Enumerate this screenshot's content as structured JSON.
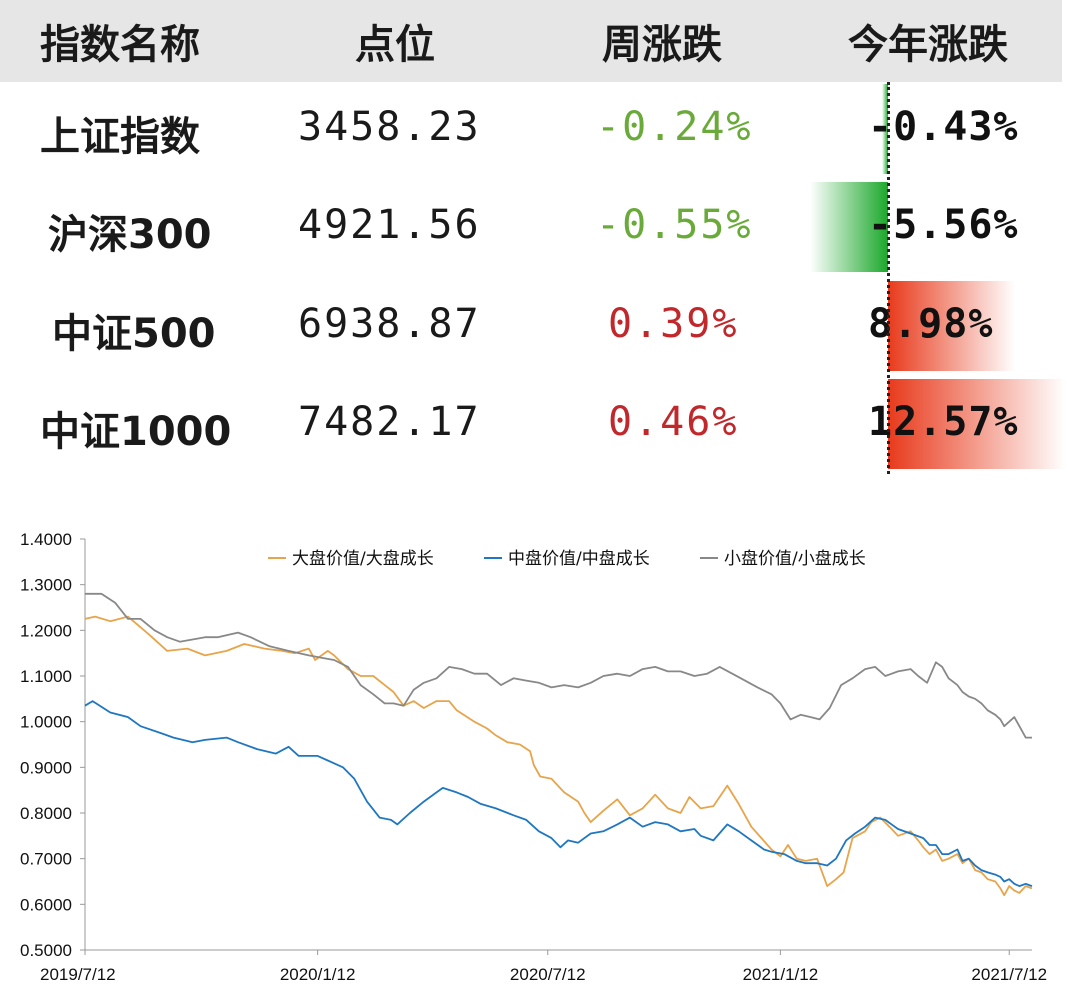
{
  "table": {
    "headers": {
      "name": "指数名称",
      "level": "点位",
      "weekly": "周涨跌",
      "ytd": "今年涨跌"
    },
    "rows": [
      {
        "name": "上证指数",
        "level": "3458.23",
        "weekly": "-0.24%",
        "ytd": "-0.43%",
        "ytd_value": -0.43,
        "direction": "down"
      },
      {
        "name": "沪深300",
        "level": "4921.56",
        "weekly": "-0.55%",
        "ytd": "-5.56%",
        "ytd_value": -5.56,
        "direction": "down"
      },
      {
        "name": "中证500",
        "level": "6938.87",
        "weekly": "0.39%",
        "ytd": "8.98%",
        "ytd_value": 8.98,
        "direction": "up"
      },
      {
        "name": "中证1000",
        "level": "7482.17",
        "weekly": "0.46%",
        "ytd": "12.57%",
        "ytd_value": 12.57,
        "direction": "up"
      }
    ],
    "colors": {
      "up": "#c0282b",
      "down": "#6aaa3a",
      "bar_up": "#e83a1c",
      "bar_down": "#1aa82a",
      "header_bg": "#e6e6e6"
    }
  },
  "chart_data": {
    "type": "line",
    "title": "",
    "xlabel": "",
    "ylabel": "",
    "ylim": [
      0.5,
      1.4
    ],
    "yticks": [
      "0.5000",
      "0.6000",
      "0.7000",
      "0.8000",
      "0.9000",
      "1.0000",
      "1.1000",
      "1.2000",
      "1.3000",
      "1.4000"
    ],
    "xticks": [
      "2019/7/12",
      "2020/1/12",
      "2020/7/12",
      "2021/1/12",
      "2021/7/12"
    ],
    "x_start": "2019/7/12",
    "x_end": "2021/7/30",
    "grid": false,
    "legend_position": "top",
    "series": [
      {
        "name": "大盘价值/大盘成长",
        "color": "#e8a44a",
        "points": [
          [
            "2019/7/12",
            1.225
          ],
          [
            "2019/7/20",
            1.23
          ],
          [
            "2019/8/1",
            1.22
          ],
          [
            "2019/8/15",
            1.23
          ],
          [
            "2019/9/1",
            1.19
          ],
          [
            "2019/9/15",
            1.155
          ],
          [
            "2019/10/1",
            1.16
          ],
          [
            "2019/10/15",
            1.145
          ],
          [
            "2019/11/1",
            1.155
          ],
          [
            "2019/11/15",
            1.17
          ],
          [
            "2019/12/1",
            1.16
          ],
          [
            "2019/12/15",
            1.155
          ],
          [
            "2019/12/25",
            1.15
          ],
          [
            "2020/1/5",
            1.16
          ],
          [
            "2020/1/10",
            1.135
          ],
          [
            "2020/1/20",
            1.155
          ],
          [
            "2020/1/25",
            1.145
          ],
          [
            "2020/2/5",
            1.115
          ],
          [
            "2020/2/15",
            1.1
          ],
          [
            "2020/2/25",
            1.1
          ],
          [
            "2020/3/5",
            1.08
          ],
          [
            "2020/3/12",
            1.065
          ],
          [
            "2020/3/20",
            1.035
          ],
          [
            "2020/3/28",
            1.045
          ],
          [
            "2020/4/5",
            1.03
          ],
          [
            "2020/4/15",
            1.045
          ],
          [
            "2020/4/25",
            1.045
          ],
          [
            "2020/5/1",
            1.025
          ],
          [
            "2020/5/15",
            1.0
          ],
          [
            "2020/5/25",
            0.985
          ],
          [
            "2020/6/1",
            0.97
          ],
          [
            "2020/6/10",
            0.955
          ],
          [
            "2020/6/20",
            0.95
          ],
          [
            "2020/6/28",
            0.935
          ],
          [
            "2020/7/1",
            0.905
          ],
          [
            "2020/7/6",
            0.88
          ],
          [
            "2020/7/15",
            0.875
          ],
          [
            "2020/7/25",
            0.845
          ],
          [
            "2020/8/5",
            0.825
          ],
          [
            "2020/8/10",
            0.8
          ],
          [
            "2020/8/15",
            0.78
          ],
          [
            "2020/8/25",
            0.805
          ],
          [
            "2020/9/5",
            0.83
          ],
          [
            "2020/9/15",
            0.795
          ],
          [
            "2020/9/25",
            0.81
          ],
          [
            "2020/10/5",
            0.84
          ],
          [
            "2020/10/15",
            0.81
          ],
          [
            "2020/10/25",
            0.8
          ],
          [
            "2020/11/1",
            0.835
          ],
          [
            "2020/11/10",
            0.81
          ],
          [
            "2020/11/20",
            0.815
          ],
          [
            "2020/12/1",
            0.86
          ],
          [
            "2020/12/10",
            0.82
          ],
          [
            "2020/12/20",
            0.77
          ],
          [
            "2020/12/28",
            0.745
          ],
          [
            "2021/1/5",
            0.72
          ],
          [
            "2021/1/12",
            0.705
          ],
          [
            "2021/1/18",
            0.73
          ],
          [
            "2021/1/25",
            0.7
          ],
          [
            "2021/2/1",
            0.695
          ],
          [
            "2021/2/10",
            0.7
          ],
          [
            "2021/2/18",
            0.64
          ],
          [
            "2021/2/25",
            0.655
          ],
          [
            "2021/3/3",
            0.67
          ],
          [
            "2021/3/10",
            0.745
          ],
          [
            "2021/3/20",
            0.76
          ],
          [
            "2021/3/25",
            0.78
          ],
          [
            "2021/4/1",
            0.79
          ],
          [
            "2021/4/10",
            0.765
          ],
          [
            "2021/4/15",
            0.75
          ],
          [
            "2021/4/25",
            0.76
          ],
          [
            "2021/5/1",
            0.74
          ],
          [
            "2021/5/5",
            0.725
          ],
          [
            "2021/5/10",
            0.71
          ],
          [
            "2021/5/15",
            0.72
          ],
          [
            "2021/5/20",
            0.695
          ],
          [
            "2021/5/25",
            0.7
          ],
          [
            "2021/6/1",
            0.71
          ],
          [
            "2021/6/5",
            0.69
          ],
          [
            "2021/6/10",
            0.7
          ],
          [
            "2021/6/15",
            0.675
          ],
          [
            "2021/6/20",
            0.67
          ],
          [
            "2021/6/25",
            0.655
          ],
          [
            "2021/7/1",
            0.65
          ],
          [
            "2021/7/5",
            0.635
          ],
          [
            "2021/7/8",
            0.62
          ],
          [
            "2021/7/12",
            0.64
          ],
          [
            "2021/7/16",
            0.63
          ],
          [
            "2021/7/20",
            0.625
          ],
          [
            "2021/7/25",
            0.64
          ],
          [
            "2021/7/30",
            0.635
          ]
        ]
      },
      {
        "name": "中盘价值/中盘成长",
        "color": "#1f77c0",
        "points": [
          [
            "2019/7/12",
            1.035
          ],
          [
            "2019/7/18",
            1.045
          ],
          [
            "2019/8/1",
            1.02
          ],
          [
            "2019/8/15",
            1.01
          ],
          [
            "2019/8/25",
            0.99
          ],
          [
            "2019/9/10",
            0.975
          ],
          [
            "2019/9/20",
            0.965
          ],
          [
            "2019/10/5",
            0.955
          ],
          [
            "2019/10/15",
            0.96
          ],
          [
            "2019/11/1",
            0.965
          ],
          [
            "2019/11/10",
            0.955
          ],
          [
            "2019/11/25",
            0.94
          ],
          [
            "2019/12/10",
            0.93
          ],
          [
            "2019/12/20",
            0.945
          ],
          [
            "2019/12/28",
            0.925
          ],
          [
            "2020/1/12",
            0.925
          ],
          [
            "2020/1/20",
            0.915
          ],
          [
            "2020/2/1",
            0.9
          ],
          [
            "2020/2/10",
            0.875
          ],
          [
            "2020/2/20",
            0.825
          ],
          [
            "2020/3/1",
            0.79
          ],
          [
            "2020/3/10",
            0.785
          ],
          [
            "2020/3/15",
            0.775
          ],
          [
            "2020/3/25",
            0.8
          ],
          [
            "2020/4/5",
            0.825
          ],
          [
            "2020/4/15",
            0.845
          ],
          [
            "2020/4/20",
            0.855
          ],
          [
            "2020/5/1",
            0.845
          ],
          [
            "2020/5/10",
            0.835
          ],
          [
            "2020/5/20",
            0.82
          ],
          [
            "2020/6/1",
            0.81
          ],
          [
            "2020/6/15",
            0.795
          ],
          [
            "2020/6/25",
            0.785
          ],
          [
            "2020/7/5",
            0.76
          ],
          [
            "2020/7/15",
            0.745
          ],
          [
            "2020/7/22",
            0.725
          ],
          [
            "2020/7/28",
            0.74
          ],
          [
            "2020/8/5",
            0.735
          ],
          [
            "2020/8/15",
            0.755
          ],
          [
            "2020/8/25",
            0.76
          ],
          [
            "2020/9/5",
            0.775
          ],
          [
            "2020/9/15",
            0.79
          ],
          [
            "2020/9/25",
            0.77
          ],
          [
            "2020/10/5",
            0.78
          ],
          [
            "2020/10/15",
            0.775
          ],
          [
            "2020/10/25",
            0.76
          ],
          [
            "2020/11/5",
            0.765
          ],
          [
            "2020/11/10",
            0.75
          ],
          [
            "2020/11/20",
            0.74
          ],
          [
            "2020/12/1",
            0.775
          ],
          [
            "2020/12/10",
            0.76
          ],
          [
            "2020/12/20",
            0.74
          ],
          [
            "2020/12/30",
            0.72
          ],
          [
            "2021/1/5",
            0.715
          ],
          [
            "2021/1/15",
            0.71
          ],
          [
            "2021/1/25",
            0.695
          ],
          [
            "2021/2/1",
            0.69
          ],
          [
            "2021/2/10",
            0.69
          ],
          [
            "2021/2/18",
            0.685
          ],
          [
            "2021/2/25",
            0.7
          ],
          [
            "2021/3/5",
            0.74
          ],
          [
            "2021/3/12",
            0.755
          ],
          [
            "2021/3/20",
            0.77
          ],
          [
            "2021/3/28",
            0.79
          ],
          [
            "2021/4/5",
            0.785
          ],
          [
            "2021/4/15",
            0.765
          ],
          [
            "2021/4/25",
            0.755
          ],
          [
            "2021/5/5",
            0.745
          ],
          [
            "2021/5/10",
            0.73
          ],
          [
            "2021/5/15",
            0.73
          ],
          [
            "2021/5/20",
            0.71
          ],
          [
            "2021/5/25",
            0.71
          ],
          [
            "2021/6/1",
            0.72
          ],
          [
            "2021/6/5",
            0.695
          ],
          [
            "2021/6/10",
            0.7
          ],
          [
            "2021/6/15",
            0.685
          ],
          [
            "2021/6/20",
            0.675
          ],
          [
            "2021/6/25",
            0.67
          ],
          [
            "2021/7/1",
            0.665
          ],
          [
            "2021/7/5",
            0.66
          ],
          [
            "2021/7/8",
            0.65
          ],
          [
            "2021/7/12",
            0.655
          ],
          [
            "2021/7/16",
            0.645
          ],
          [
            "2021/7/20",
            0.64
          ],
          [
            "2021/7/25",
            0.645
          ],
          [
            "2021/7/30",
            0.64
          ]
        ]
      },
      {
        "name": "小盘价值/小盘成长",
        "color": "#888888",
        "points": [
          [
            "2019/7/12",
            1.28
          ],
          [
            "2019/7/25",
            1.28
          ],
          [
            "2019/8/5",
            1.26
          ],
          [
            "2019/8/15",
            1.225
          ],
          [
            "2019/8/25",
            1.225
          ],
          [
            "2019/9/5",
            1.2
          ],
          [
            "2019/9/15",
            1.185
          ],
          [
            "2019/9/25",
            1.175
          ],
          [
            "2019/10/5",
            1.18
          ],
          [
            "2019/10/15",
            1.185
          ],
          [
            "2019/10/25",
            1.185
          ],
          [
            "2019/11/10",
            1.195
          ],
          [
            "2019/11/20",
            1.185
          ],
          [
            "2019/12/5",
            1.165
          ],
          [
            "2019/12/20",
            1.155
          ],
          [
            "2020/1/5",
            1.145
          ],
          [
            "2020/1/15",
            1.14
          ],
          [
            "2020/1/25",
            1.135
          ],
          [
            "2020/2/5",
            1.12
          ],
          [
            "2020/2/15",
            1.08
          ],
          [
            "2020/2/25",
            1.06
          ],
          [
            "2020/3/5",
            1.04
          ],
          [
            "2020/3/12",
            1.04
          ],
          [
            "2020/3/20",
            1.035
          ],
          [
            "2020/3/28",
            1.07
          ],
          [
            "2020/4/5",
            1.085
          ],
          [
            "2020/4/15",
            1.095
          ],
          [
            "2020/4/25",
            1.12
          ],
          [
            "2020/5/5",
            1.115
          ],
          [
            "2020/5/15",
            1.105
          ],
          [
            "2020/5/25",
            1.105
          ],
          [
            "2020/6/5",
            1.08
          ],
          [
            "2020/6/15",
            1.095
          ],
          [
            "2020/6/25",
            1.09
          ],
          [
            "2020/7/5",
            1.085
          ],
          [
            "2020/7/15",
            1.075
          ],
          [
            "2020/7/25",
            1.08
          ],
          [
            "2020/8/5",
            1.075
          ],
          [
            "2020/8/15",
            1.085
          ],
          [
            "2020/8/25",
            1.1
          ],
          [
            "2020/9/5",
            1.105
          ],
          [
            "2020/9/15",
            1.1
          ],
          [
            "2020/9/25",
            1.115
          ],
          [
            "2020/10/5",
            1.12
          ],
          [
            "2020/10/15",
            1.11
          ],
          [
            "2020/10/25",
            1.11
          ],
          [
            "2020/11/5",
            1.1
          ],
          [
            "2020/11/15",
            1.105
          ],
          [
            "2020/11/25",
            1.12
          ],
          [
            "2020/12/5",
            1.105
          ],
          [
            "2020/12/15",
            1.09
          ],
          [
            "2020/12/25",
            1.075
          ],
          [
            "2021/1/5",
            1.06
          ],
          [
            "2021/1/12",
            1.04
          ],
          [
            "2021/1/20",
            1.005
          ],
          [
            "2021/1/28",
            1.015
          ],
          [
            "2021/2/5",
            1.01
          ],
          [
            "2021/2/12",
            1.005
          ],
          [
            "2021/2/20",
            1.03
          ],
          [
            "2021/3/1",
            1.08
          ],
          [
            "2021/3/10",
            1.095
          ],
          [
            "2021/3/20",
            1.115
          ],
          [
            "2021/3/28",
            1.12
          ],
          [
            "2021/4/5",
            1.1
          ],
          [
            "2021/4/15",
            1.11
          ],
          [
            "2021/4/25",
            1.115
          ],
          [
            "2021/5/1",
            1.1
          ],
          [
            "2021/5/8",
            1.085
          ],
          [
            "2021/5/15",
            1.13
          ],
          [
            "2021/5/20",
            1.12
          ],
          [
            "2021/5/25",
            1.095
          ],
          [
            "2021/6/1",
            1.08
          ],
          [
            "2021/6/5",
            1.065
          ],
          [
            "2021/6/10",
            1.055
          ],
          [
            "2021/6/15",
            1.05
          ],
          [
            "2021/6/20",
            1.04
          ],
          [
            "2021/6/25",
            1.025
          ],
          [
            "2021/7/1",
            1.015
          ],
          [
            "2021/7/5",
            1.005
          ],
          [
            "2021/7/8",
            0.99
          ],
          [
            "2021/7/12",
            1.0
          ],
          [
            "2021/7/16",
            1.01
          ],
          [
            "2021/7/20",
            0.99
          ],
          [
            "2021/7/25",
            0.965
          ],
          [
            "2021/7/30",
            0.965
          ]
        ]
      }
    ]
  }
}
